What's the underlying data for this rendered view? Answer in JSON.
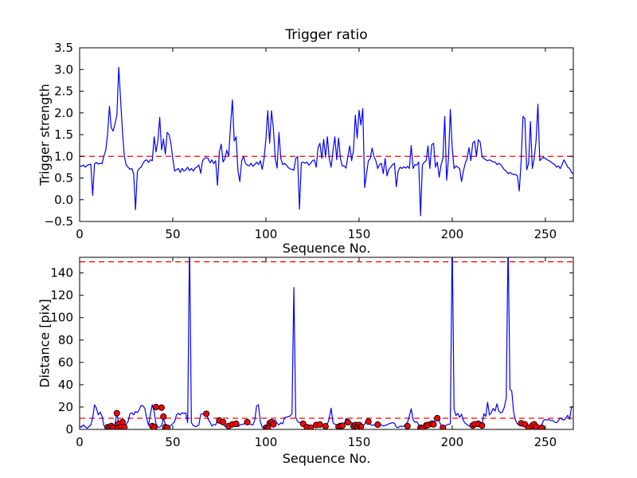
{
  "figure": {
    "background": "#ffffff"
  },
  "colors": {
    "line": "#0000ff",
    "threshold": "#ff0000",
    "marker_face": "#ff0000",
    "marker_edge": "#000000",
    "axis": "#000000"
  },
  "chart_data": [
    {
      "type": "line",
      "title": "Trigger ratio",
      "xlabel": "Sequence No.",
      "ylabel": "Trigger strength",
      "xlim": [
        0,
        265
      ],
      "ylim": [
        -0.5,
        3.5
      ],
      "grid": false,
      "legend": "none",
      "xticks": [
        0,
        50,
        100,
        150,
        200,
        250
      ],
      "yticks": [
        -0.5,
        0.0,
        0.5,
        1.0,
        1.5,
        2.0,
        2.5,
        3.0,
        3.5
      ],
      "ytick_labels": [
        "−0.5",
        "0.0",
        "0.5",
        "1.0",
        "1.5",
        "2.0",
        "2.5",
        "3.0",
        "3.5"
      ],
      "thresholds": [
        1.0
      ],
      "x_step": 1,
      "values": [
        0.78,
        0.77,
        0.8,
        0.75,
        0.79,
        0.81,
        0.82,
        0.1,
        0.83,
        0.86,
        0.82,
        0.84,
        0.83,
        1.0,
        1.14,
        1.5,
        2.15,
        1.66,
        1.58,
        1.75,
        1.95,
        3.05,
        2.3,
        1.57,
        1.0,
        0.8,
        0.75,
        0.7,
        0.72,
        0.6,
        -0.23,
        0.65,
        0.72,
        0.75,
        0.84,
        0.9,
        0.92,
        0.86,
        0.92,
        0.9,
        1.45,
        1.1,
        1.35,
        1.9,
        1.15,
        1.4,
        1.05,
        1.55,
        1.5,
        1.3,
        0.95,
        0.66,
        0.69,
        0.72,
        0.63,
        0.72,
        0.66,
        0.69,
        0.75,
        0.67,
        0.72,
        0.66,
        0.73,
        0.75,
        0.8,
        0.61,
        0.9,
        0.95,
        0.97,
        0.95,
        0.85,
        0.92,
        0.83,
        0.9,
        0.33,
        1.1,
        1.28,
        0.87,
        0.95,
        1.14,
        1.0,
        1.7,
        2.3,
        1.35,
        1.45,
        0.66,
        0.42,
        0.9,
        1.0,
        0.84,
        0.8,
        0.78,
        0.84,
        0.77,
        0.81,
        0.87,
        0.81,
        0.9,
        0.7,
        0.95,
        1.4,
        2.05,
        1.3,
        2.05,
        1.65,
        0.95,
        0.73,
        1.55,
        0.95,
        0.81,
        0.84,
        0.8,
        0.74,
        0.71,
        0.7,
        0.68,
        0.95,
        1.0,
        -0.22,
        0.85,
        0.87,
        0.84,
        0.87,
        0.8,
        0.84,
        0.9,
        0.92,
        0.75,
        1.2,
        1.3,
        0.95,
        1.39,
        0.98,
        1.45,
        0.95,
        0.75,
        1.13,
        1.45,
        0.92,
        1.42,
        0.95,
        0.78,
        0.78,
        0.73,
        1.0,
        1.24,
        0.9,
        1.13,
        1.95,
        1.42,
        2.06,
        1.72,
        2.1,
        0.28,
        0.6,
        0.9,
        0.95,
        1.19,
        1.0,
        0.9,
        0.72,
        0.81,
        0.84,
        0.6,
        0.95,
        0.55,
        0.7,
        0.75,
        0.81,
        0.84,
        0.3,
        0.66,
        0.75,
        0.72,
        0.76,
        0.73,
        0.77,
        0.72,
        1.25,
        0.72,
        0.81,
        0.8,
        0.87,
        -0.37,
        0.8,
        0.87,
        0.9,
        1.24,
        0.72,
        1.27,
        1.3,
        0.75,
        0.87,
        0.52,
        0.8,
        0.95,
        1.92,
        0.45,
        0.95,
        2.08,
        1.2,
        0.72,
        0.78,
        0.75,
        0.72,
        0.42,
        0.66,
        0.84,
        0.95,
        1.2,
        0.9,
        1.3,
        1.35,
        1.0,
        1.38,
        1.33,
        1.0,
        0.95,
        0.92,
        0.9,
        0.92,
        0.9,
        0.87,
        0.87,
        0.81,
        0.84,
        0.81,
        0.75,
        0.69,
        0.66,
        0.6,
        0.63,
        0.6,
        0.58,
        0.58,
        0.55,
        0.2,
        0.9,
        1.92,
        1.87,
        0.69,
        0.84,
        1.8,
        0.72,
        0.95,
        1.35,
        2.2,
        0.9,
        0.95,
        0.98,
        0.95,
        0.92,
        0.9,
        0.87,
        0.84,
        0.81,
        0.75,
        0.78,
        0.72,
        0.81,
        0.92,
        0.84,
        0.75,
        0.72,
        0.63,
        0.6
      ]
    },
    {
      "type": "line+scatter",
      "title": "",
      "xlabel": "Sequence No.",
      "ylabel": "Distance [pix]",
      "xlim": [
        0,
        265
      ],
      "ylim": [
        0,
        154
      ],
      "grid": false,
      "legend": "none",
      "xticks": [
        0,
        50,
        100,
        150,
        200,
        250
      ],
      "yticks": [
        0,
        20,
        40,
        60,
        80,
        100,
        120,
        140
      ],
      "ytick_labels": [
        "0",
        "20",
        "40",
        "60",
        "80",
        "100",
        "120",
        "140"
      ],
      "thresholds": [
        150,
        10
      ],
      "x_step": 1,
      "values": [
        3,
        2,
        4,
        2.5,
        1,
        2.5,
        4,
        10,
        22,
        19,
        13,
        15.5,
        12,
        3.5,
        2,
        2,
        1.5,
        3,
        2,
        5,
        14.5,
        5,
        2.5,
        6.5,
        2.5,
        4.5,
        7,
        14,
        15,
        13,
        16,
        15,
        17.5,
        21.5,
        21,
        19,
        10,
        3.5,
        14,
        22,
        16,
        5,
        2,
        2,
        3.5,
        10,
        4.5,
        2,
        2,
        3.5,
        5,
        7,
        13,
        14.5,
        13,
        15,
        14,
        15,
        6,
        170,
        6,
        3.5,
        2.5,
        3,
        4,
        13.5,
        14,
        13.5,
        14,
        9,
        6.5,
        3,
        4.5,
        4,
        8,
        9,
        7,
        6.5,
        2.5,
        3.5,
        4.5,
        4,
        4.8,
        4,
        3.8,
        2.5,
        4,
        4.5,
        4.5,
        6.5,
        6.5,
        5,
        4.5,
        4,
        8,
        21,
        22,
        7,
        2,
        1.8,
        1.5,
        1.2,
        6,
        8.5,
        8,
        8.5,
        5.5,
        4,
        6,
        5,
        10.5,
        11,
        11.5,
        12,
        14,
        127,
        11,
        7,
        6,
        6.5,
        5,
        4,
        2.5,
        2,
        1.5,
        3,
        4.5,
        4.8,
        4.5,
        4.3,
        4,
        3.5,
        3.5,
        4.5,
        10,
        19,
        6,
        4.5,
        4,
        3,
        3,
        3.3,
        4.5,
        9.8,
        8.6,
        7,
        6,
        5,
        5.7,
        4.5,
        4.5,
        3.6,
        4,
        4.5,
        8.6,
        9,
        4.5,
        3.6,
        4,
        4.5,
        4.5,
        5,
        4,
        3,
        3.6,
        4,
        5,
        5.5,
        6,
        5.5,
        2,
        1.5,
        3,
        2.5,
        3,
        4.5,
        6.4,
        12,
        18.5,
        8.8,
        6.4,
        6.9,
        4,
        2,
        1.7,
        4,
        4.5,
        5.2,
        5.9,
        6,
        6.4,
        9.3,
        10,
        7.6,
        3.6,
        2,
        2.9,
        4,
        4.5,
        5,
        170,
        18,
        12.4,
        14.3,
        10.7,
        13.6,
        7.9,
        5.5,
        4.3,
        3.1,
        2.6,
        3,
        3.6,
        4.3,
        5,
        3.1,
        4,
        14,
        11.7,
        24.3,
        12.9,
        15.2,
        18.8,
        16.4,
        22.9,
        16.4,
        14.8,
        15.7,
        20,
        28,
        170,
        36,
        34,
        15,
        8,
        5,
        3.5,
        5.5,
        3,
        4.5,
        2.5,
        2,
        2.5,
        3.5,
        4.5,
        3,
        3,
        2.5,
        4,
        7.9,
        9,
        8.3,
        8.8,
        7.9,
        8,
        6.4,
        6,
        7.9,
        10.2,
        9,
        8.3,
        10.2,
        12.6,
        9,
        19.5,
        20.7
      ],
      "scatter": [
        [
          15,
          2
        ],
        [
          16,
          1.2
        ],
        [
          17,
          3
        ],
        [
          18,
          1.5
        ],
        [
          20,
          14.5
        ],
        [
          20.5,
          2
        ],
        [
          21,
          5
        ],
        [
          22,
          2.5
        ],
        [
          23,
          6.5
        ],
        [
          24,
          2
        ],
        [
          39,
          3
        ],
        [
          40,
          2
        ],
        [
          41,
          20
        ],
        [
          44,
          19.5
        ],
        [
          45,
          11.5
        ],
        [
          46,
          2
        ],
        [
          47,
          1.5
        ],
        [
          68,
          14
        ],
        [
          75,
          8
        ],
        [
          77,
          6.5
        ],
        [
          80,
          3
        ],
        [
          82,
          4.5
        ],
        [
          84,
          5
        ],
        [
          90,
          6.5
        ],
        [
          100,
          1.5
        ],
        [
          101,
          1
        ],
        [
          102,
          5.5
        ],
        [
          103,
          6.5
        ],
        [
          104,
          4.5
        ],
        [
          120,
          5
        ],
        [
          122,
          2
        ],
        [
          124,
          1.5
        ],
        [
          127,
          4
        ],
        [
          129,
          4.3
        ],
        [
          132,
          2.8
        ],
        [
          139,
          2.3
        ],
        [
          140,
          3
        ],
        [
          141,
          3.3
        ],
        [
          144,
          6.4
        ],
        [
          147,
          3
        ],
        [
          148,
          4
        ],
        [
          149,
          2.6
        ],
        [
          150,
          4
        ],
        [
          151,
          2.5
        ],
        [
          155,
          7
        ],
        [
          160,
          4.3
        ],
        [
          176,
          3
        ],
        [
          183,
          1.5
        ],
        [
          184,
          1
        ],
        [
          186,
          3.5
        ],
        [
          187,
          4
        ],
        [
          189,
          5
        ],
        [
          190,
          4.5
        ],
        [
          192,
          10
        ],
        [
          195,
          1.5
        ],
        [
          211,
          3.5
        ],
        [
          212,
          4.5
        ],
        [
          214,
          5
        ],
        [
          216,
          3.5
        ],
        [
          237,
          5.5
        ],
        [
          239,
          4.5
        ],
        [
          241,
          1.5
        ],
        [
          243,
          3.5
        ],
        [
          244,
          4.5
        ],
        [
          245,
          2.5
        ],
        [
          248,
          1.5
        ]
      ]
    }
  ]
}
